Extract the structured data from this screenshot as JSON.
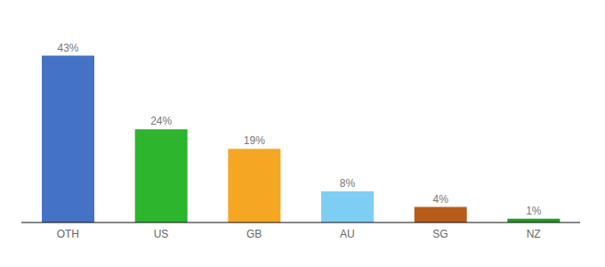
{
  "chart_data": {
    "type": "bar",
    "categories": [
      "OTH",
      "US",
      "GB",
      "AU",
      "SG",
      "NZ"
    ],
    "values": [
      43,
      24,
      19,
      8,
      4,
      1
    ],
    "value_labels": [
      "43%",
      "24%",
      "19%",
      "8%",
      "4%",
      "1%"
    ],
    "colors": [
      "#4472c4",
      "#2db52d",
      "#f5a623",
      "#7ecef4",
      "#b85c1a",
      "#1e9e1e"
    ],
    "data_labels": true,
    "ylim": [
      0,
      50
    ],
    "tick_labels": "x",
    "grid": false
  }
}
